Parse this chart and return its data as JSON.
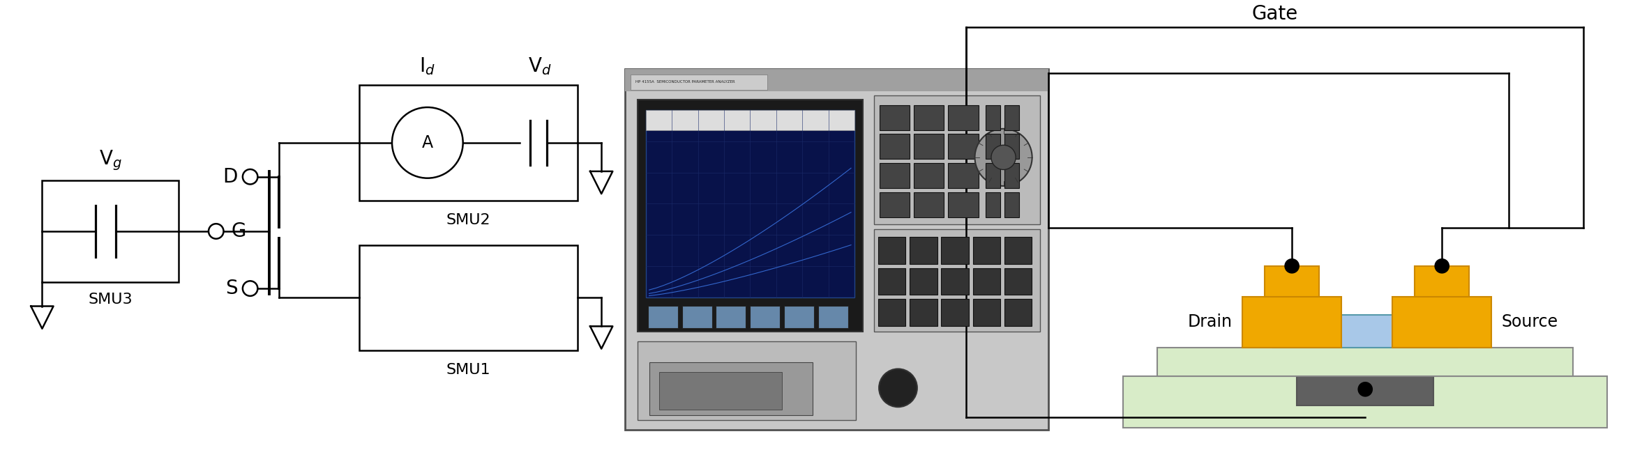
{
  "bg_color": "#ffffff",
  "line_color": "#000000",
  "figsize": [
    23.54,
    6.56
  ],
  "dpi": 100,
  "labels": {
    "Vg": "V$_g$",
    "SMU3": "SMU3",
    "G": "G",
    "D": "D",
    "S": "S",
    "A": "A",
    "Id": "I$_d$",
    "Vd": "V$_d$",
    "SMU2": "SMU2",
    "SMU1": "SMU1",
    "Gate": "Gate",
    "Drain": "Drain",
    "Source": "Source"
  },
  "drain_color": "#F0A800",
  "source_color": "#F0A800",
  "semiconductor_color": "#A8C8E8",
  "insulator_color": "#808080",
  "substrate_color": "#D8ECC8",
  "gate_metal_color": "#F0A800",
  "contact_color": "#1a1a1a"
}
